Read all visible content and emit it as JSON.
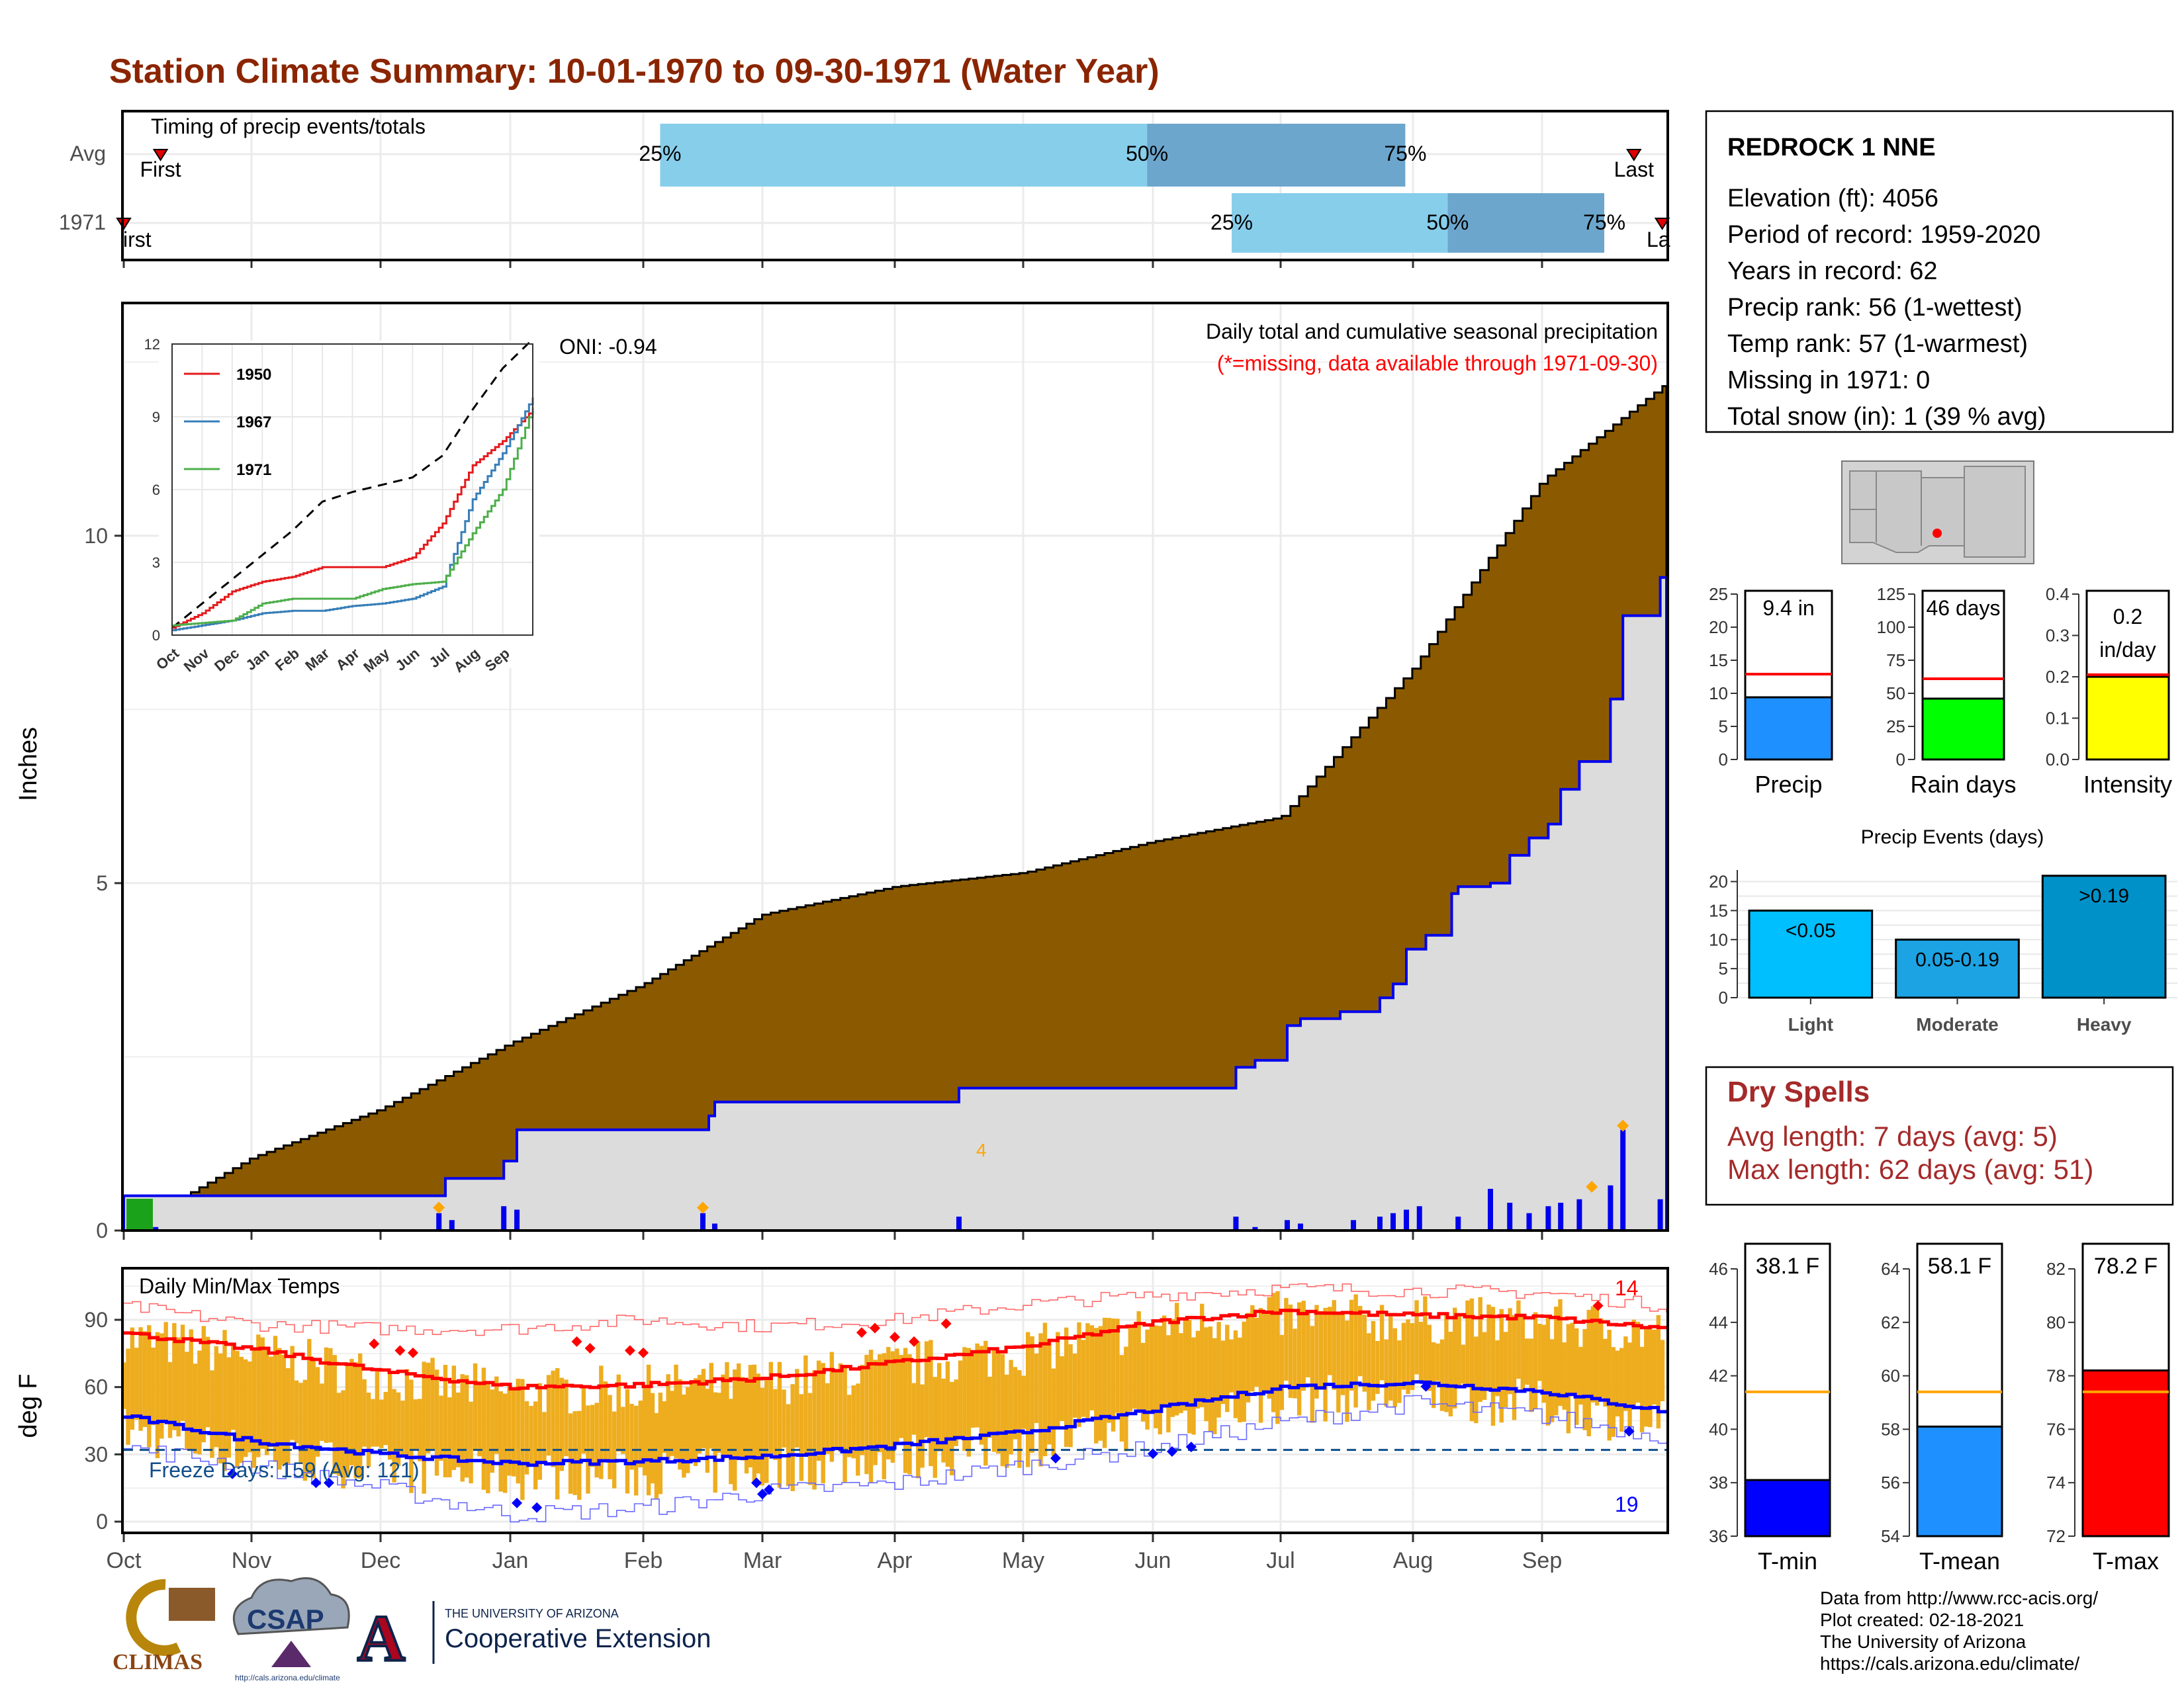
{
  "title": "Station Climate Summary: 10-01-1970 to 09-30-1971 (Water Year)",
  "months": [
    "Oct",
    "Nov",
    "Dec",
    "Jan",
    "Feb",
    "Mar",
    "Apr",
    "May",
    "Jun",
    "Jul",
    "Aug",
    "Sep"
  ],
  "timing": {
    "title": "Timing of precip events/totals",
    "rows": [
      "Avg",
      "1971"
    ],
    "avg": {
      "first": "First",
      "last": "Last",
      "q25": "25%",
      "q50": "50%",
      "q75": "75%",
      "first_day": 9,
      "q25_day": 127,
      "q50_day": 242,
      "q75_day": 303,
      "last_day": 357
    },
    "year": {
      "first": "irst",
      "last": "La",
      "q25": "25%",
      "q50": "50%",
      "q75": "75%",
      "first_day": 0,
      "q25_day": 262,
      "q50_day": 313,
      "q75_day": 350,
      "last_day": 364
    }
  },
  "station": {
    "name": "REDROCK 1 NNE",
    "lines": [
      "Elevation (ft): 4056",
      "Period of record: 1959-2020",
      "Years in record: 62",
      "Precip rank: 56 (1-wettest)",
      "Temp rank: 57 (1-warmest)",
      "Missing in 1971: 0",
      "Total snow (in): 1 (39 % avg)"
    ]
  },
  "precip_panel": {
    "ylabel": "Inches",
    "yticks": [
      0,
      5,
      10
    ],
    "header1": "Daily total and cumulative seasonal precipitation",
    "header2": "(*=missing, data available through 1971-09-30)",
    "oni": "ONI: -0.94",
    "corner_label": "4",
    "colors": {
      "avg_fill": "#8B5A00",
      "year_fill": "#DCDCDC",
      "year_line": "#0000EE",
      "daily_bar": "#0000EE",
      "extreme_marker": "#FFA500"
    }
  },
  "inset": {
    "yticks": [
      0,
      3,
      6,
      9,
      12
    ],
    "xticks": [
      "Oct",
      "Nov",
      "Dec",
      "Jan",
      "Feb",
      "Mar",
      "Apr",
      "May",
      "Jun",
      "Jul",
      "Aug",
      "Sep"
    ],
    "legend": [
      {
        "name": "1950",
        "color": "#E41A1C"
      },
      {
        "name": "1967",
        "color": "#377EB8"
      },
      {
        "name": "1971",
        "color": "#4DAF4A"
      }
    ]
  },
  "temp_panel": {
    "ylabel": "deg F",
    "title": "Daily Min/Max Temps",
    "yticks": [
      0,
      30,
      60,
      90
    ],
    "freeze_label": "Freeze Days: 159 (Avg: 121)",
    "high_count": "14",
    "low_count": "19",
    "colors": {
      "range_bar": "#EEAD1F",
      "avg_max": "#FF0000",
      "avg_min": "#0000FF"
    }
  },
  "mini_precip": {
    "precip": {
      "label": "Precip",
      "value_label": "9.4 in",
      "value": 9.4,
      "avg": 12.9,
      "yticks": [
        0,
        5,
        10,
        15,
        20,
        25
      ],
      "ymax": 25,
      "color": "#1E90FF"
    },
    "raindays": {
      "label": "Rain days",
      "value_label": "46 days",
      "value": 46,
      "avg": 61,
      "yticks": [
        0,
        25,
        50,
        75,
        100,
        125
      ],
      "ymax": 125,
      "color": "#00FF00"
    },
    "intensity": {
      "label": "Intensity",
      "value_label_1": "0.2",
      "value_label_2": "in/day",
      "value": 0.2,
      "avg": 0.205,
      "yticks": [
        "0.0",
        "0.1",
        "0.2",
        "0.3",
        "0.4"
      ],
      "ymax": 0.4,
      "color": "#FFFF00"
    }
  },
  "events": {
    "title": "Precip Events (days)",
    "yticks": [
      0,
      5,
      10,
      15,
      20
    ],
    "categories": [
      "Light",
      "Moderate",
      "Heavy"
    ],
    "bar_labels": [
      "<0.05",
      "0.05-0.19",
      ">0.19"
    ],
    "values": [
      15,
      10,
      21
    ],
    "colors": [
      "#00BFFF",
      "#1CA3E3",
      "#0091C9"
    ]
  },
  "dry_spells": {
    "title": "Dry Spells",
    "line1": "Avg length: 7 days (avg: 5)",
    "line2": "Max length: 62 days (avg: 51)"
  },
  "mini_temp": {
    "tmin": {
      "label": "T-min",
      "value_label": "38.1 F",
      "value": 38.1,
      "avg": 41.4,
      "ylim": [
        36,
        46
      ],
      "yticks": [
        36,
        38,
        40,
        42,
        44,
        46
      ],
      "color": "#0000FF"
    },
    "tmean": {
      "label": "T-mean",
      "value_label": "58.1 F",
      "value": 58.1,
      "avg": 59.4,
      "ylim": [
        54,
        64
      ],
      "yticks": [
        54,
        56,
        58,
        60,
        62,
        64
      ],
      "color": "#1E90FF"
    },
    "tmax": {
      "label": "T-max",
      "value_label": "78.2 F",
      "value": 78.2,
      "avg": 77.4,
      "ylim": [
        72,
        82
      ],
      "yticks": [
        72,
        74,
        76,
        78,
        80,
        82
      ],
      "color": "#FF0000"
    }
  },
  "footer": [
    "Data from http://www.rcc-acis.org/",
    "Plot created: 02-18-2021",
    "The University of Arizona",
    "https://cals.arizona.edu/climate/"
  ],
  "logos": {
    "climas": "CLIMAS",
    "csap": "CSAP",
    "csap_url": "http://cals.arizona.edu/climate",
    "ua_letter": "A",
    "ua_top": "THE UNIVERSITY OF ARIZONA",
    "ua_bottom": "Cooperative Extension"
  },
  "chart_data": [
    {
      "type": "area",
      "title": "Daily total and cumulative seasonal precipitation",
      "ylabel": "Inches",
      "ylim": [
        0,
        12.5
      ],
      "x": [
        "Oct",
        "Nov",
        "Dec",
        "Jan",
        "Feb",
        "Mar",
        "Apr",
        "May",
        "Jun",
        "Jul",
        "Aug",
        "Sep",
        "Sep-end"
      ],
      "series": [
        {
          "values": [
            0.0,
            1.05,
            1.75,
            2.7,
            3.55,
            4.55,
            4.95,
            5.15,
            5.6,
            5.95,
            8.1,
            10.8,
            12.2
          ]
        },
        {
          "values": [
            0.5,
            0.5,
            0.5,
            0.5,
            1.45,
            1.85,
            1.85,
            1.85,
            1.85,
            2.45,
            3.6,
            5.0,
            9.4
          ]
        }
      ],
      "daily_bars_annotation": "4"
    },
    {
      "type": "line",
      "x": [
        "Oct",
        "Nov",
        "Dec",
        "Jan",
        "Feb",
        "Mar",
        "Apr",
        "May",
        "Jun",
        "Jul",
        "Aug",
        "Sep",
        "Sep-end"
      ],
      "ylim": [
        0,
        12
      ],
      "series": [
        {
          "values": [
            0.3,
            1.3,
            2.3,
            3.3,
            4.3,
            5.5,
            5.9,
            6.2,
            6.5,
            7.4,
            9.3,
            11.0,
            12.2
          ]
        },
        {
          "name": "1950",
          "values": [
            0.3,
            0.9,
            1.8,
            2.2,
            2.4,
            2.8,
            2.8,
            2.8,
            3.2,
            4.6,
            7.0,
            8.0,
            9.3
          ]
        },
        {
          "name": "1967",
          "values": [
            0.2,
            0.4,
            0.6,
            0.9,
            1.0,
            1.0,
            1.2,
            1.3,
            1.5,
            2.0,
            5.6,
            7.5,
            9.8
          ]
        },
        {
          "name": "1971",
          "values": [
            0.4,
            0.5,
            0.6,
            1.3,
            1.5,
            1.5,
            1.5,
            1.9,
            2.1,
            2.2,
            4.2,
            6.0,
            9.4
          ]
        }
      ]
    },
    {
      "type": "line",
      "title": "Daily Min/Max Temps",
      "ylabel": "deg F",
      "ylim": [
        -5,
        113
      ],
      "x": [
        "Oct",
        "Nov",
        "Dec",
        "Jan",
        "Feb",
        "Mar",
        "Apr",
        "May",
        "Jun",
        "Jul",
        "Aug",
        "Sep",
        "Sep-end"
      ],
      "series": [
        {
          "values": [
            84,
            77,
            67,
            60,
            61,
            64,
            71,
            78,
            89,
            94,
            92,
            91,
            86
          ]
        },
        {
          "values": [
            47,
            36,
            30,
            26,
            27,
            29,
            34,
            40,
            50,
            60,
            62,
            58,
            49
          ]
        },
        {
          "values": [
            96,
            88,
            86,
            86,
            90,
            87,
            90,
            97,
            101,
            104,
            103,
            102,
            96
          ]
        },
        {
          "values": [
            33,
            25,
            15,
            3,
            6,
            13,
            17,
            25,
            33,
            44,
            53,
            47,
            38
          ]
        }
      ],
      "freeze_threshold": 32,
      "annotations": [
        "Freeze Days: 159 (Avg: 121)",
        "14",
        "19"
      ]
    },
    {
      "type": "bar",
      "categories": [
        "Precip"
      ],
      "values": [
        9.4
      ],
      "ylim": [
        0,
        25
      ]
    },
    {
      "type": "bar",
      "categories": [
        "Rain days"
      ],
      "values": [
        46
      ],
      "ylim": [
        0,
        125
      ]
    },
    {
      "type": "bar",
      "categories": [
        "Intensity"
      ],
      "values": [
        0.2
      ],
      "ylim": [
        0,
        0.4
      ]
    },
    {
      "type": "bar",
      "title": "Precip Events (days)",
      "categories": [
        "Light",
        "Moderate",
        "Heavy"
      ],
      "values": [
        15,
        10,
        21
      ],
      "ylim": [
        0,
        22
      ]
    },
    {
      "type": "bar",
      "categories": [
        "T-min"
      ],
      "values": [
        38.1
      ],
      "ylim": [
        36,
        46
      ]
    },
    {
      "type": "bar",
      "categories": [
        "T-mean"
      ],
      "values": [
        58.1
      ],
      "ylim": [
        54,
        64
      ]
    },
    {
      "type": "bar",
      "categories": [
        "T-max"
      ],
      "values": [
        78.2
      ],
      "ylim": [
        72,
        82
      ]
    }
  ]
}
